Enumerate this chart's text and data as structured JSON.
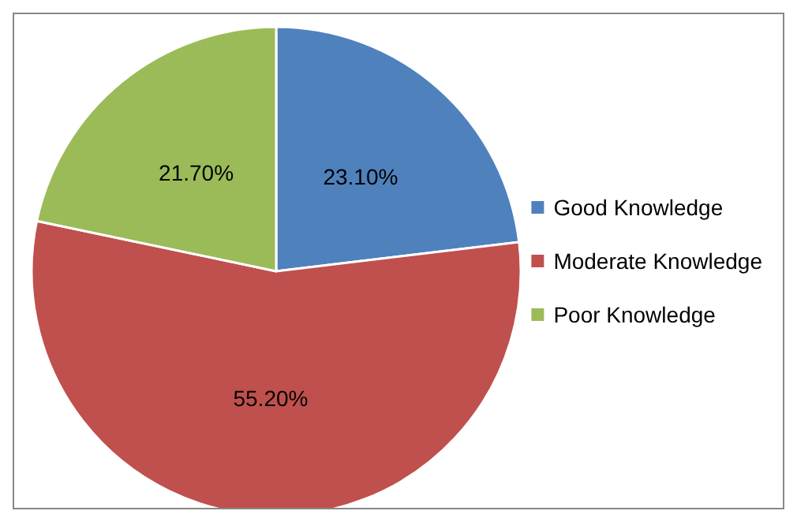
{
  "chart_data": {
    "type": "pie",
    "categories": [
      "Good Knowledge",
      "Moderate Knowledge",
      "Poor Knowledge"
    ],
    "values": [
      23.1,
      55.2,
      21.7
    ],
    "colors": [
      "#4f81bd",
      "#c0504d",
      "#9bbb59"
    ],
    "value_labels": [
      "23.10%",
      "55.20%",
      "21.70%"
    ],
    "legend": "right"
  }
}
